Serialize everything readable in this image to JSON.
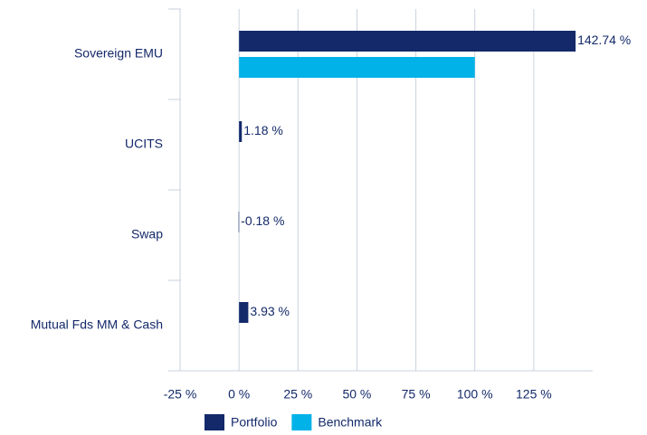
{
  "chart_data": {
    "type": "hbar",
    "categories": [
      "Sovereign EMU",
      "UCITS",
      "Swap",
      "Mutual Fds MM & Cash"
    ],
    "series": [
      {
        "name": "Portfolio",
        "color": "#13296a",
        "values": [
          142.74,
          1.18,
          -0.18,
          3.93
        ],
        "value_labels": [
          "142.74 %",
          "1.18 %",
          "-0.18 %",
          "3.93 %"
        ]
      },
      {
        "name": "Benchmark",
        "color": "#00b2e8",
        "values": [
          100,
          null,
          null,
          null
        ]
      }
    ],
    "xlim": [
      -30,
      150
    ],
    "xticks": [
      {
        "value": -25,
        "label": "-25 %"
      },
      {
        "value": 0,
        "label": "0 %"
      },
      {
        "value": 25,
        "label": "25 %"
      },
      {
        "value": 50,
        "label": "50 %"
      },
      {
        "value": 75,
        "label": "75 %"
      },
      {
        "value": 100,
        "label": "100 %"
      },
      {
        "value": 125,
        "label": "125 %"
      }
    ],
    "grid": true,
    "legend": "bottom"
  }
}
